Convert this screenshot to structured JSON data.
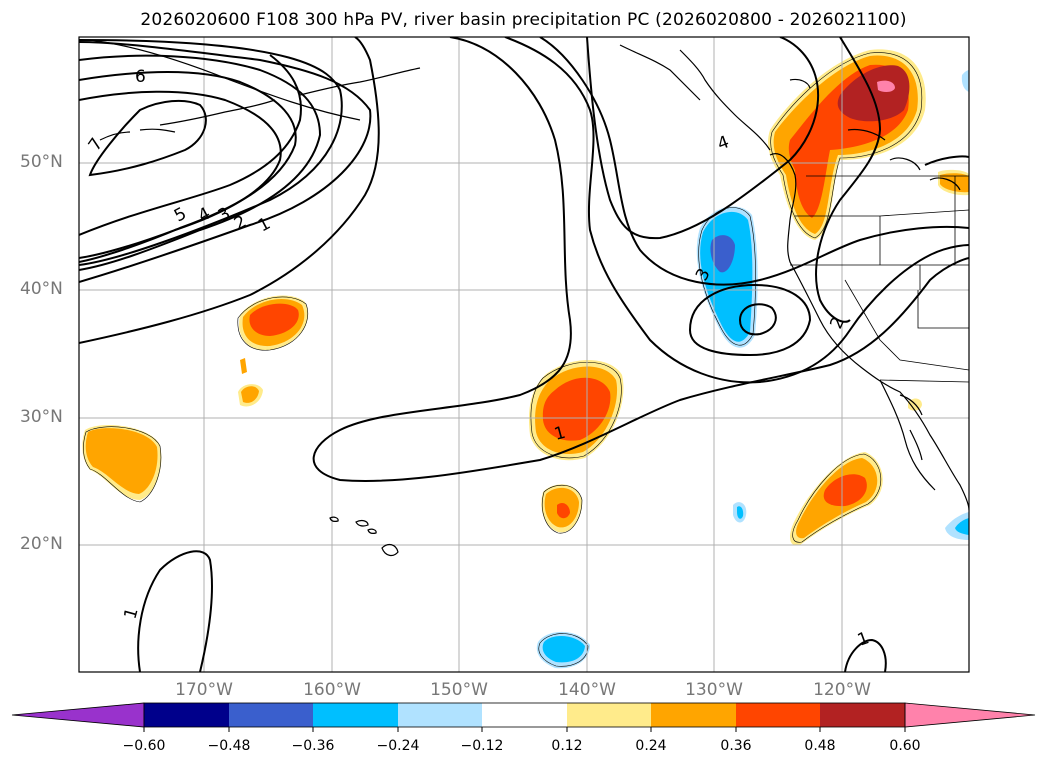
{
  "title": "2026020600 F108 300 hPa PV, river basin precipitation PC (2026020800 - 2026021100)",
  "map": {
    "extent": {
      "lon_min": -180,
      "lon_max": -110,
      "lat_min": 10,
      "lat_max": 60
    },
    "lat_labels": [
      {
        "lat": 50,
        "text": "50°N"
      },
      {
        "lat": 40,
        "text": "40°N"
      },
      {
        "lat": 30,
        "text": "30°N"
      },
      {
        "lat": 20,
        "text": "20°N"
      }
    ],
    "lon_labels": [
      {
        "lon": -170,
        "text": "170°W"
      },
      {
        "lon": -160,
        "text": "160°W"
      },
      {
        "lon": -150,
        "text": "150°W"
      },
      {
        "lon": -140,
        "text": "140°W"
      },
      {
        "lon": -130,
        "text": "130°W"
      },
      {
        "lon": -120,
        "text": "120°W"
      }
    ],
    "contour_labels": [
      "6",
      "7",
      "5",
      "4",
      "3",
      "2",
      "1",
      "4",
      "3",
      "2",
      "1",
      "1",
      "1"
    ]
  },
  "colorbar": {
    "colors": [
      "#9932cc",
      "#00008b",
      "#3a5fcd",
      "#00bfff",
      "#b0e2ff",
      "#ffffff",
      "#ffeb8b",
      "#ffa500",
      "#ff4500",
      "#b22222",
      "#ff82ab"
    ],
    "ticks": [
      "−0.60",
      "−0.48",
      "−0.36",
      "−0.24",
      "−0.12",
      "0.12",
      "0.24",
      "0.36",
      "0.48",
      "0.60"
    ]
  }
}
